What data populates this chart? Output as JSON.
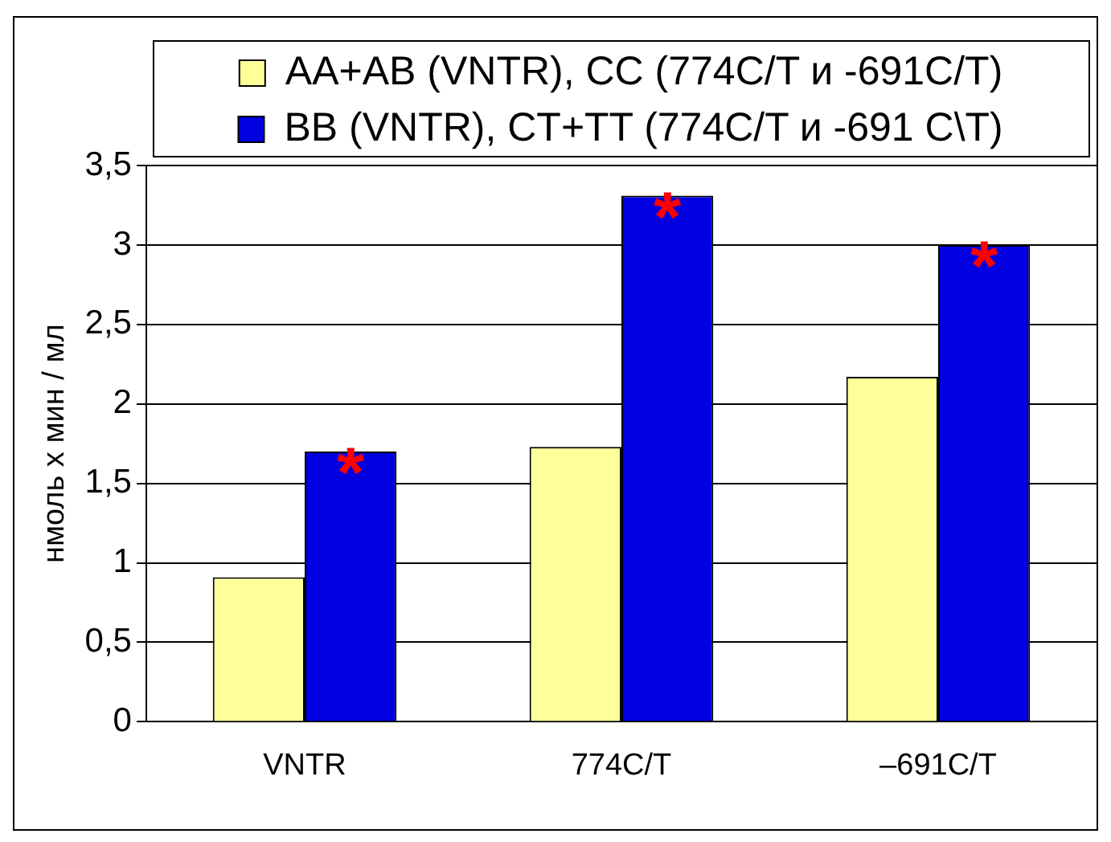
{
  "chart_data": {
    "type": "bar",
    "ylabel": "нмоль х мин / мл",
    "categories": [
      "VNTR",
      "774C/T",
      "–691C/T"
    ],
    "series": [
      {
        "name": "AA+AB (VNTR), CC (774C/T и -691C/T)",
        "color": "#ffff99",
        "values": [
          0.91,
          1.73,
          2.17
        ]
      },
      {
        "name": "BB (VNTR), CT+TT (774C/T и -691 C\\T)",
        "color": "#0000e0",
        "values": [
          1.7,
          3.31,
          3.0
        ]
      }
    ],
    "ylim": [
      0,
      3.5
    ],
    "yticks": [
      0,
      {
        "value": 0.5,
        "label": "0,5"
      },
      1,
      {
        "value": 1.5,
        "label": "1,5"
      },
      2,
      {
        "value": 2.5,
        "label": "2,5"
      },
      3,
      {
        "value": 3.5,
        "label": "3,5"
      }
    ],
    "grid": "y",
    "legend": "top",
    "annotations": [
      {
        "text": "*",
        "x": "VNTR",
        "y": 1.7
      },
      {
        "text": "*",
        "x": "774C/T",
        "y": 3.31
      },
      {
        "text": "*",
        "x": "–691C/T",
        "y": 3.0
      }
    ]
  }
}
